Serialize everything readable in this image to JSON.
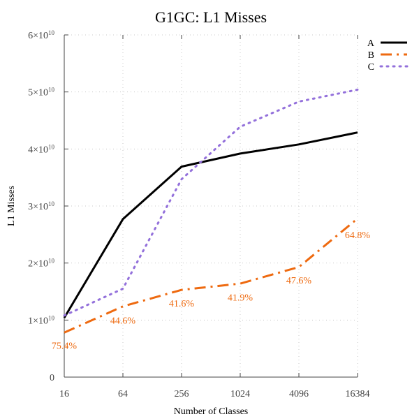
{
  "chart_data": {
    "type": "line",
    "title": "G1GC: L1 Misses",
    "xlabel": "Number of Classes",
    "ylabel": "L1 Misses",
    "x": [
      16,
      64,
      256,
      1024,
      4096,
      16384
    ],
    "x_tick_labels": [
      "16",
      "64",
      "256",
      "1024",
      "4096",
      "16384"
    ],
    "x_scale": "log2",
    "ylim": [
      0,
      60000000000
    ],
    "y_ticks": [
      {
        "value": 0,
        "base": "0",
        "exp": ""
      },
      {
        "value": 10000000000,
        "base": "1×10",
        "exp": "10"
      },
      {
        "value": 20000000000,
        "base": "2×10",
        "exp": "10"
      },
      {
        "value": 30000000000,
        "base": "3×10",
        "exp": "10"
      },
      {
        "value": 40000000000,
        "base": "4×10",
        "exp": "10"
      },
      {
        "value": 50000000000,
        "base": "5×10",
        "exp": "10"
      },
      {
        "value": 60000000000,
        "base": "6×10",
        "exp": "10"
      }
    ],
    "grid": true,
    "legend_position": "top-right",
    "series": [
      {
        "name": "A",
        "color": "#000000",
        "style": "solid",
        "values": [
          10400000000,
          27700000000,
          36900000000,
          39200000000,
          40800000000,
          42900000000
        ]
      },
      {
        "name": "B",
        "color": "#ee6a10",
        "style": "dashdot",
        "values": [
          7800000000,
          12400000000,
          15300000000,
          16400000000,
          19300000000,
          27800000000
        ]
      },
      {
        "name": "C",
        "color": "#9370db",
        "style": "dotted",
        "values": [
          10800000000,
          15500000000,
          34700000000,
          43900000000,
          48300000000,
          50400000000
        ]
      }
    ],
    "annotations": [
      {
        "text": "75.4%",
        "x": 16,
        "y": 5600000000
      },
      {
        "text": "44.6%",
        "x": 64,
        "y": 10000000000
      },
      {
        "text": "41.6%",
        "x": 256,
        "y": 13000000000
      },
      {
        "text": "41.9%",
        "x": 1024,
        "y": 14000000000
      },
      {
        "text": "47.6%",
        "x": 4096,
        "y": 17000000000
      },
      {
        "text": "64.8%",
        "x": 16384,
        "y": 25000000000
      }
    ],
    "annotation_color": "#ee6a10"
  }
}
